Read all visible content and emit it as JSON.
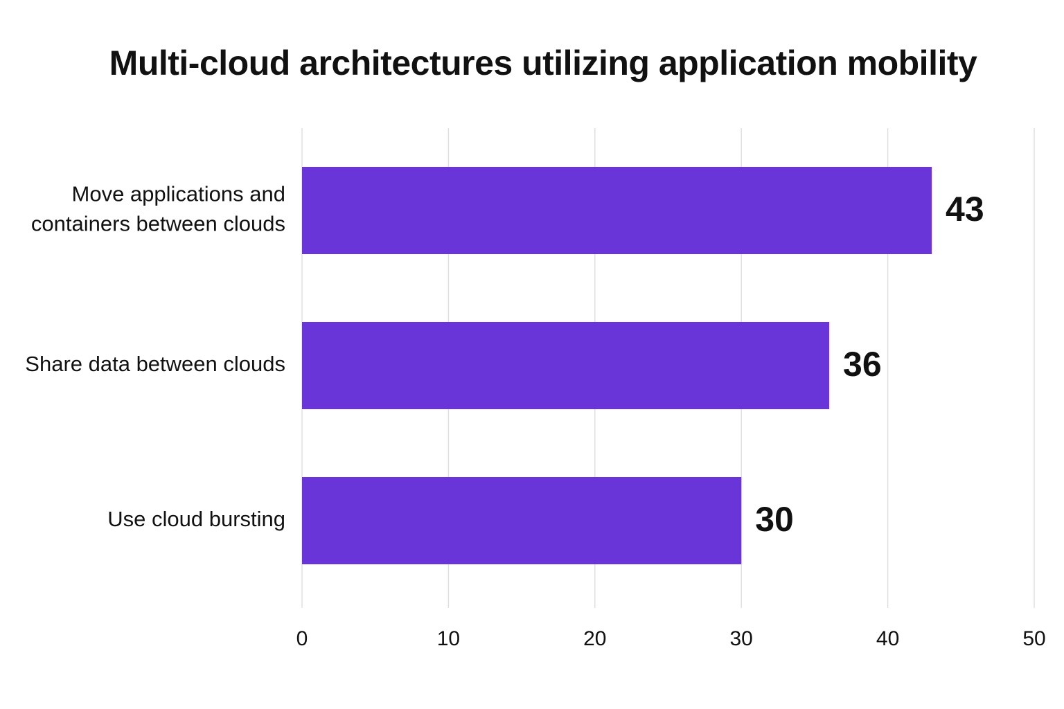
{
  "chart_data": {
    "type": "bar",
    "orientation": "horizontal",
    "title": "Multi-cloud architectures utilizing application mobility",
    "categories": [
      [
        "Move applications and",
        "containers between clouds"
      ],
      [
        "Share data between clouds"
      ],
      [
        "Use cloud bursting"
      ]
    ],
    "values": [
      43,
      36,
      30
    ],
    "data_labels": [
      "43",
      "36",
      "30"
    ],
    "xlim": [
      0,
      50
    ],
    "xticks": [
      0,
      10,
      20,
      30,
      40,
      50
    ],
    "xtick_labels": [
      "0",
      "10",
      "20",
      "30",
      "40",
      "50"
    ],
    "grid": "vertical",
    "bar_color": "#6a35d8"
  }
}
